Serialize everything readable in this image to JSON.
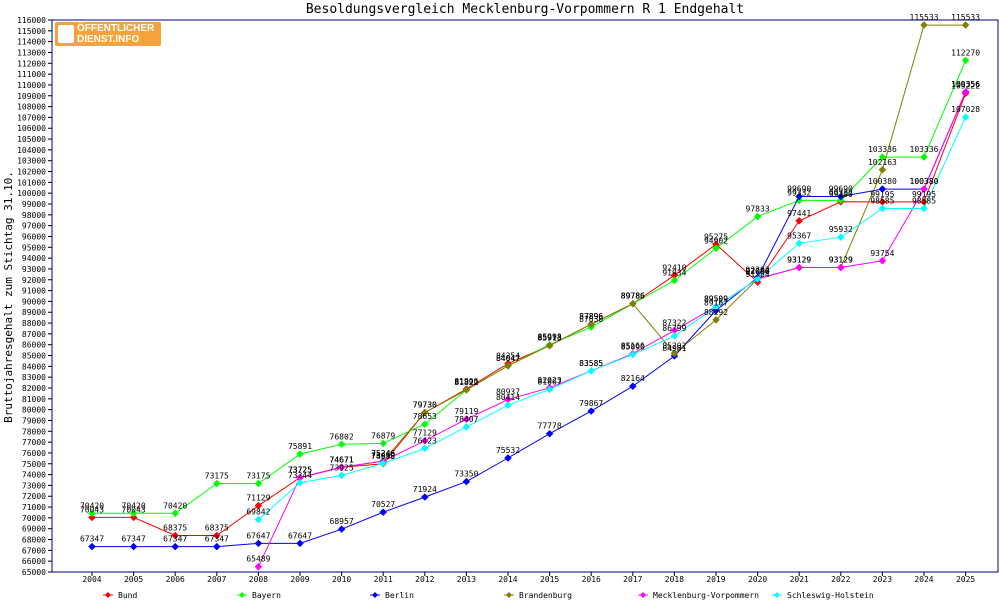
{
  "logo": {
    "line1": "ÖFFENTLICHER",
    "line2": "DIENST.INFO"
  },
  "chart_data": {
    "type": "line",
    "title": "Besoldungsvergleich Mecklenburg-Vorpommern R 1 Endgehalt",
    "ylabel": "Bruttojahresgehalt zum Stichtag 31.10.",
    "xlabel": "",
    "ylim": [
      65000,
      116000
    ],
    "ytick_step": 1000,
    "grid": false,
    "legend_position": "bottom",
    "x": [
      "2004",
      "2005",
      "2006",
      "2007",
      "2008",
      "2009",
      "2010",
      "2011",
      "2012",
      "2013",
      "2014",
      "2015",
      "2016",
      "2017",
      "2018",
      "2019",
      "2020",
      "2021",
      "2022",
      "2023",
      "2024",
      "2025"
    ],
    "series": [
      {
        "name": "Bund",
        "color": "#ff0000",
        "values": [
          70043,
          70043,
          68375,
          68375,
          71129,
          73725,
          74671,
          74993,
          79730,
          81906,
          84254,
          85913,
          87896,
          89786,
          92410,
          95275,
          91784,
          97441,
          99200,
          99195,
          99195,
          109222
        ]
      },
      {
        "name": "Bayern",
        "color": "#00ff00",
        "values": [
          70420,
          70420,
          70420,
          73175,
          73175,
          75891,
          76802,
          76879,
          78653,
          81822,
          84047,
          85998,
          87630,
          89786,
          91934,
          94902,
          97833,
          99332,
          99332,
          103336,
          103336,
          112270
        ]
      },
      {
        "name": "Berlin",
        "color": "#0000ff",
        "values": [
          67347,
          67347,
          67347,
          67347,
          67647,
          67647,
          68957,
          70527,
          71924,
          73350,
          75532,
          77778,
          79867,
          82164,
          84961,
          89167,
          92202,
          99690,
          99690,
          100380,
          100380,
          109356
        ]
      },
      {
        "name": "Brandenburg",
        "color": "#808000",
        "values": [
          null,
          null,
          null,
          null,
          null,
          73725,
          74671,
          75246,
          79730,
          81822,
          84047,
          85913,
          87896,
          89786,
          85202,
          88292,
          92080,
          93129,
          93129,
          102163,
          115533,
          115533
        ]
      },
      {
        "name": "Mecklenburg-Vorpommern",
        "color": "#ff00ff",
        "values": [
          null,
          null,
          null,
          null,
          65489,
          73725,
          74671,
          75246,
          77129,
          79119,
          80937,
          82023,
          83585,
          85166,
          87322,
          89509,
          92080,
          93129,
          93129,
          93754,
          100380,
          109356
        ]
      },
      {
        "name": "Schleswig-Holstein",
        "color": "#00ffff",
        "values": [
          null,
          null,
          null,
          null,
          69842,
          73244,
          73925,
          75030,
          76423,
          78407,
          80414,
          81867,
          83585,
          85090,
          86799,
          89509,
          92080,
          95367,
          95932,
          98585,
          98585,
          107028
        ]
      }
    ]
  }
}
